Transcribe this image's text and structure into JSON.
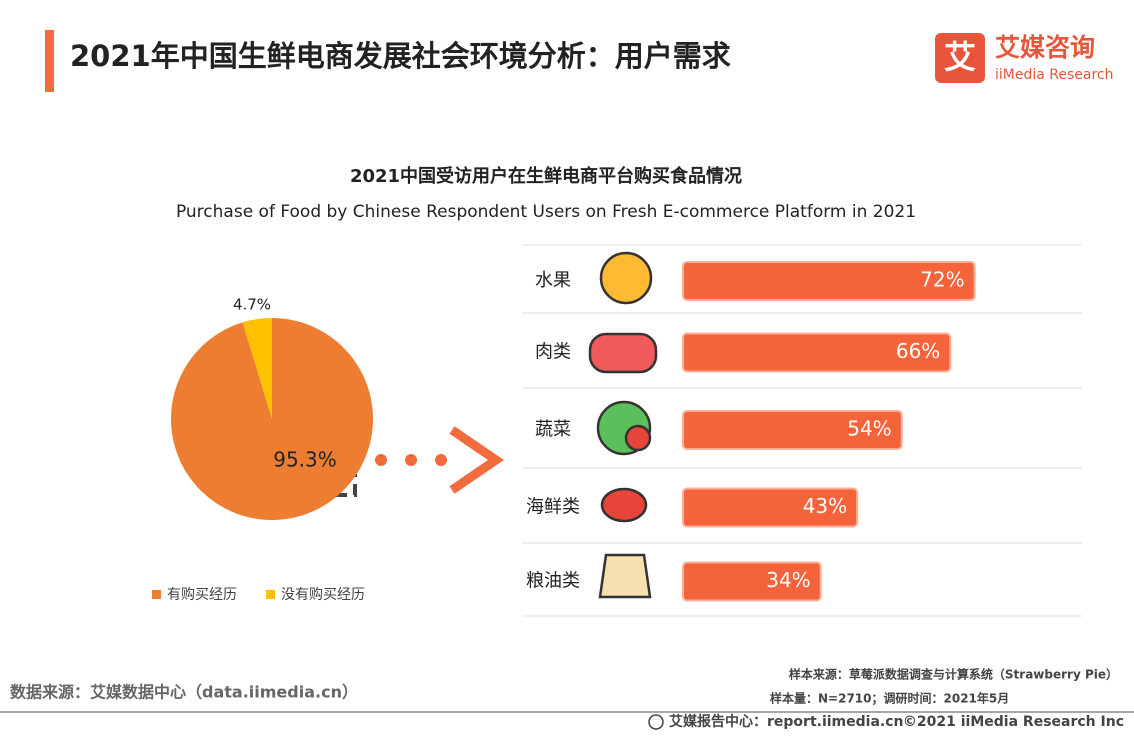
{
  "header": {
    "title": "2021年中国生鲜电商发展社会环境分析：用户需求",
    "logo_mark": "艾",
    "logo_name": "艾媒咨询",
    "logo_sub": "iiMedia Research"
  },
  "chart_data": [
    {
      "type": "pie",
      "title": "2021中国受访用户在生鲜电商平台购买食品情况",
      "subtitle": "Purchase of Food by Chinese Respondent Users on Fresh E-commerce Platform in 2021",
      "categories": [
        "有购买经历",
        "没有购买经历"
      ],
      "values": [
        95.3,
        4.7
      ],
      "value_labels": [
        "95.3%",
        "4.7%"
      ],
      "colors": [
        "#ed7d31",
        "#ffc000"
      ],
      "legend": "bottom"
    },
    {
      "type": "hbar",
      "categories": [
        "水果",
        "肉类",
        "蔬菜",
        "海鲜类",
        "粮油类"
      ],
      "values": [
        72,
        66,
        54,
        43,
        34
      ],
      "value_labels": [
        "72%",
        "66%",
        "54%",
        "43%",
        "34%"
      ],
      "color": "#f4633a"
    }
  ],
  "footer": {
    "source": "数据来源：艾媒数据中心（data.iimedia.cn）",
    "sample_source": "样本来源：草莓派数据调查与计算系统（Strawberry Pie）",
    "sample_size": "样本量：N=2710；调研时间：2021年5月",
    "report": "艾媒报告中心：report.iimedia.cn",
    "copyright": "©2021  iiMedia Research  Inc"
  }
}
